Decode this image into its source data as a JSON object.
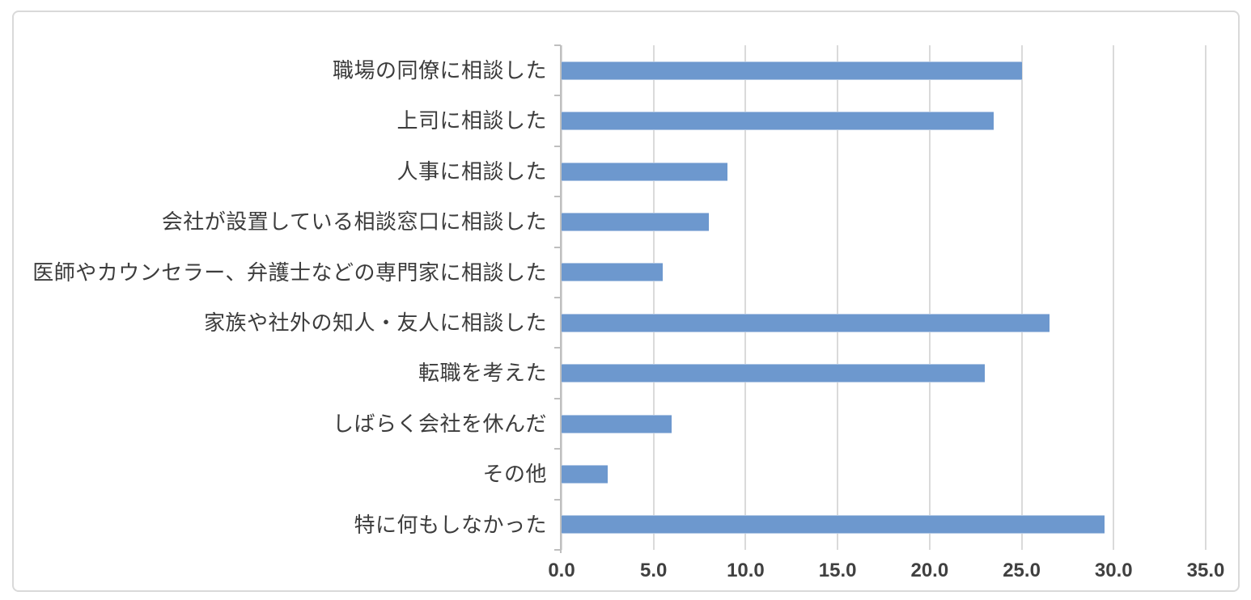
{
  "chart_data": {
    "type": "bar",
    "orientation": "horizontal",
    "title": "",
    "xlabel": "",
    "ylabel": "",
    "categories": [
      "職場の同僚に相談した",
      "上司に相談した",
      "人事に相談した",
      "会社が設置している相談窓口に相談した",
      "医師やカウンセラー、弁護士などの専門家に相談した",
      "家族や社外の知人・友人に相談した",
      "転職を考えた",
      "しばらく会社を休んだ",
      "その他",
      "特に何もしなかった"
    ],
    "values": [
      25.0,
      23.5,
      9.0,
      8.0,
      5.5,
      26.5,
      23.0,
      6.0,
      2.5,
      29.5
    ],
    "xlim": [
      0,
      35
    ],
    "x_tick_values": [
      0,
      5,
      10,
      15,
      20,
      25,
      30,
      35
    ],
    "x_tick_labels": [
      "0.0",
      "5.0",
      "10.0",
      "15.0",
      "20.0",
      "25.0",
      "30.0",
      "35.0"
    ],
    "grid": true,
    "legend": false
  },
  "colors": {
    "bar_fill": "#6D98CE",
    "gridline": "#DADADA",
    "axis_line": "#BFBFBF",
    "category_label": "#3C3C3C",
    "tick_label": "#404040",
    "frame_border": "#D9D9D9",
    "background": "#FFFFFF"
  }
}
